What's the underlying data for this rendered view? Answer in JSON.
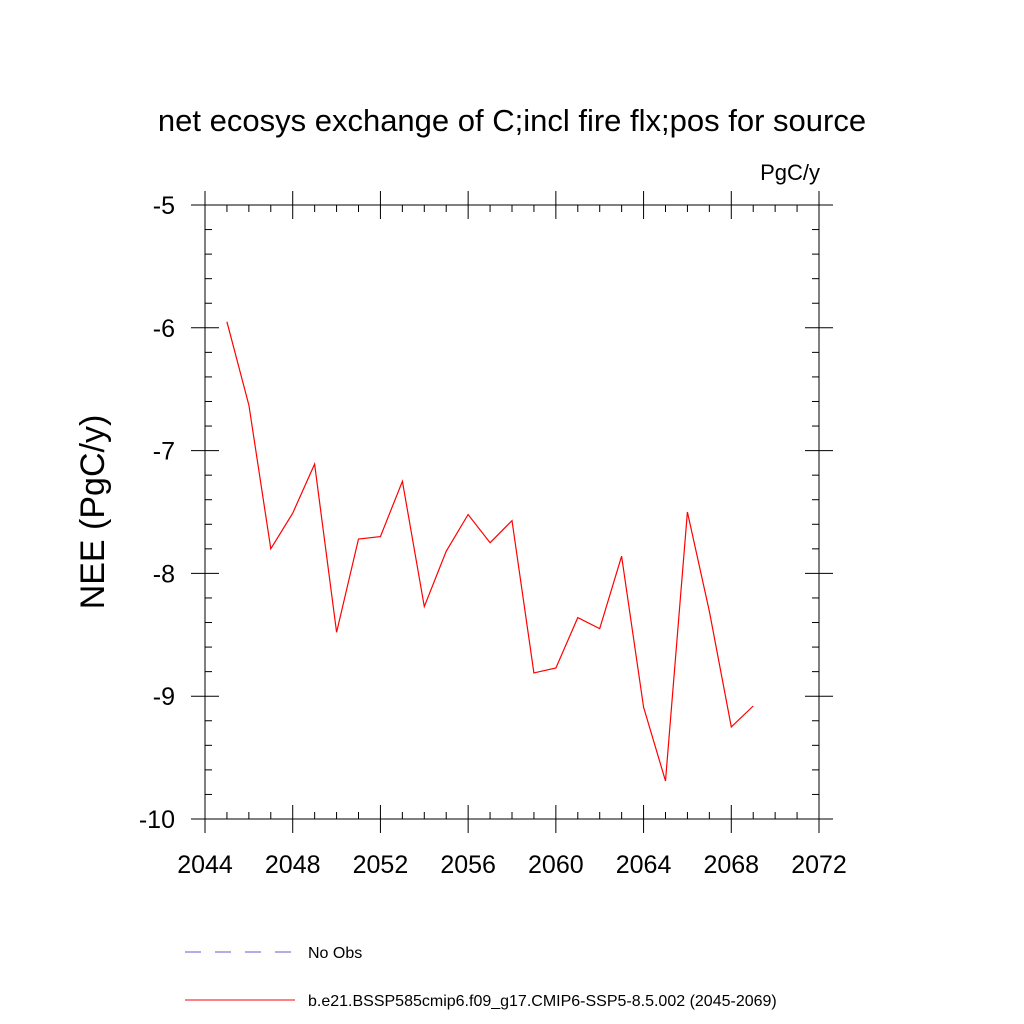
{
  "chart_data": {
    "type": "line",
    "title": "net ecosys exchange of C;incl fire flx;pos for source",
    "units": "PgC/y",
    "ylabel": "NEE  (PgC/y)",
    "xlabel": "",
    "xlim": [
      2044,
      2072
    ],
    "ylim": [
      -10,
      -5
    ],
    "x_ticks": [
      2044,
      2048,
      2052,
      2056,
      2060,
      2064,
      2068,
      2072
    ],
    "y_ticks": [
      -5,
      -6,
      -7,
      -8,
      -9,
      -10
    ],
    "x_tick_labels": [
      "2044",
      "2048",
      "2052",
      "2056",
      "2060",
      "2064",
      "2068",
      "2072"
    ],
    "y_tick_labels": [
      "-5",
      "-6",
      "-7",
      "-8",
      "-9",
      "-10"
    ],
    "x_minor_step": 1,
    "y_minor_step": 0.2,
    "grid": false,
    "legend_position": "bottom",
    "series": [
      {
        "name": "No Obs",
        "color": "#6a5acd",
        "dash": "dashed",
        "x": [],
        "y": []
      },
      {
        "name": "b.e21.BSSP585cmip6.f09_g17.CMIP6-SSP5-8.5.002 (2045-2069)",
        "color": "#ff0000",
        "dash": "solid",
        "x": [
          2045,
          2046,
          2047,
          2048,
          2049,
          2050,
          2051,
          2052,
          2053,
          2054,
          2055,
          2056,
          2057,
          2058,
          2059,
          2060,
          2061,
          2062,
          2063,
          2064,
          2065,
          2066,
          2067,
          2068,
          2069
        ],
        "y": [
          -5.95,
          -6.63,
          -7.8,
          -7.51,
          -7.11,
          -8.48,
          -7.72,
          -7.7,
          -7.25,
          -8.27,
          -7.82,
          -7.52,
          -7.75,
          -7.57,
          -8.81,
          -8.77,
          -8.36,
          -8.45,
          -7.86,
          -9.09,
          -9.69,
          -7.5,
          -8.31,
          -9.25,
          -9.08
        ]
      }
    ]
  }
}
